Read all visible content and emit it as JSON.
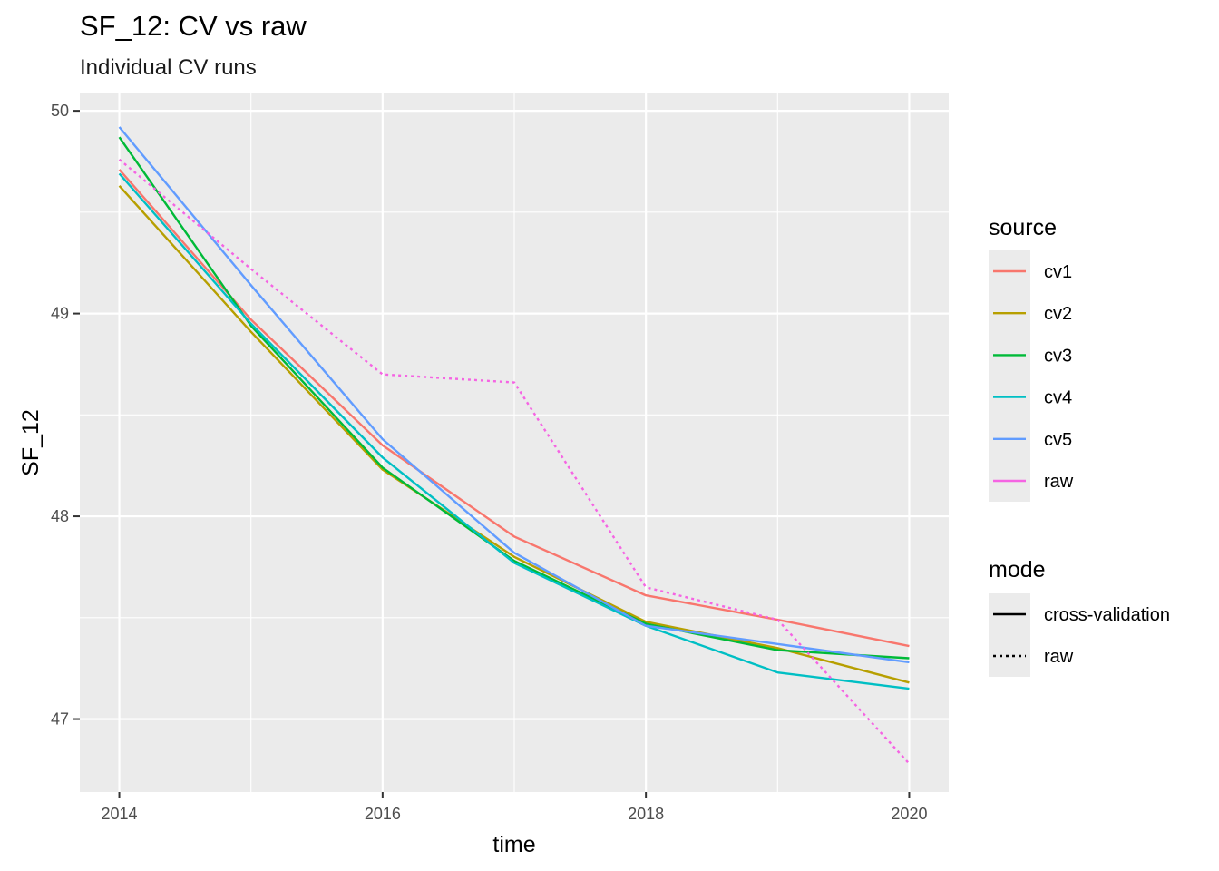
{
  "chart_data": {
    "type": "line",
    "title": "SF_12: CV vs raw",
    "subtitle": "Individual CV runs",
    "xlabel": "time",
    "ylabel": "SF_12",
    "x": [
      2014,
      2015,
      2016,
      2017,
      2018,
      2019,
      2020
    ],
    "xlim": [
      2013.7,
      2020.3
    ],
    "ylim": [
      46.64,
      50.09
    ],
    "x_ticks": [
      2014,
      2016,
      2018,
      2020
    ],
    "y_ticks": [
      47,
      48,
      49,
      50
    ],
    "grid": true,
    "panel_background": "#ebebeb",
    "series": [
      {
        "name": "cv1",
        "mode": "cross-validation",
        "color": "#F8766D",
        "values": [
          49.71,
          48.97,
          48.35,
          47.9,
          47.61,
          47.49,
          47.36
        ]
      },
      {
        "name": "cv2",
        "mode": "cross-validation",
        "color": "#B79F00",
        "values": [
          49.63,
          48.91,
          48.23,
          47.8,
          47.48,
          47.35,
          47.18
        ]
      },
      {
        "name": "cv3",
        "mode": "cross-validation",
        "color": "#00BA38",
        "values": [
          49.87,
          48.94,
          48.24,
          47.78,
          47.47,
          47.34,
          47.3
        ]
      },
      {
        "name": "cv4",
        "mode": "cross-validation",
        "color": "#00BFC4",
        "values": [
          49.69,
          48.95,
          48.29,
          47.77,
          47.46,
          47.23,
          47.15
        ]
      },
      {
        "name": "cv5",
        "mode": "cross-validation",
        "color": "#619CFF",
        "values": [
          49.92,
          49.14,
          48.38,
          47.82,
          47.46,
          47.37,
          47.28
        ]
      },
      {
        "name": "raw",
        "mode": "raw",
        "color": "#F564E3",
        "values": [
          49.76,
          49.22,
          48.7,
          48.66,
          47.65,
          47.49,
          46.78
        ]
      }
    ],
    "legend": {
      "placement": "right",
      "source": {
        "title": "source",
        "items": [
          {
            "label": "cv1",
            "color": "#F8766D"
          },
          {
            "label": "cv2",
            "color": "#B79F00"
          },
          {
            "label": "cv3",
            "color": "#00BA38"
          },
          {
            "label": "cv4",
            "color": "#00BFC4"
          },
          {
            "label": "cv5",
            "color": "#619CFF"
          },
          {
            "label": "raw",
            "color": "#F564E3"
          }
        ]
      },
      "mode": {
        "title": "mode",
        "items": [
          {
            "label": "cross-validation",
            "linetype": "solid"
          },
          {
            "label": "raw",
            "linetype": "dotted"
          }
        ]
      }
    }
  }
}
